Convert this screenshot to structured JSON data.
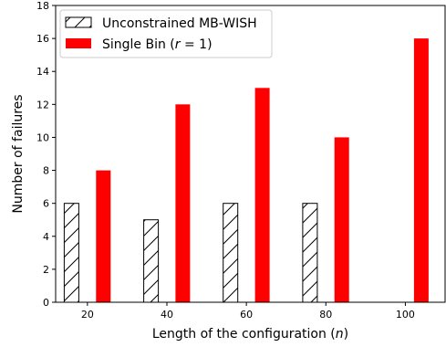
{
  "chart_data": {
    "type": "bar",
    "xlabel": "Length of the configuration (",
    "xlabel_var": "n",
    "xlabel_close": ")",
    "ylabel": "Number of failures",
    "ylim": [
      0,
      18
    ],
    "xlim": [
      12,
      110
    ],
    "x_ticks": [
      20,
      40,
      60,
      80,
      100
    ],
    "y_ticks": [
      0,
      2,
      4,
      6,
      8,
      10,
      12,
      14,
      16,
      18
    ],
    "legend_position": "top-left",
    "series": [
      {
        "name": "Unconstrained MB-WISH",
        "style": "hatched",
        "edge_color": "#000000",
        "fill_color": "#ffffff",
        "offset": -4,
        "x": [
          20,
          40,
          60,
          80,
          100
        ],
        "values": [
          6,
          5,
          6,
          6,
          null
        ]
      },
      {
        "name_prefix": "Single Bin (",
        "name_var": "r",
        "name_suffix": " = 1)",
        "style": "solid",
        "edge_color": "#ff0000",
        "fill_color": "#ff0000",
        "offset": 4,
        "x": [
          20,
          40,
          60,
          80,
          100
        ],
        "values": [
          8,
          12,
          13,
          10,
          16
        ]
      }
    ]
  }
}
